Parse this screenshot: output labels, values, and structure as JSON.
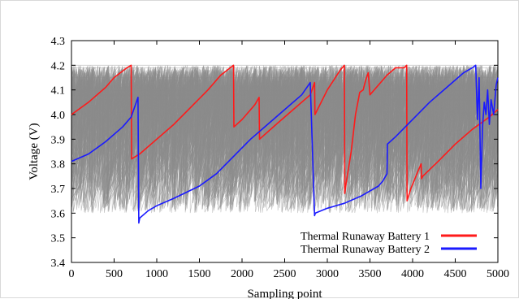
{
  "chart_data": {
    "type": "line",
    "title": "",
    "xlabel": "Sampling point",
    "ylabel": "Voltage (V)",
    "xlim": [
      0,
      5000
    ],
    "ylim": [
      3.4,
      4.3
    ],
    "x_ticks": [
      0,
      500,
      1000,
      1500,
      2000,
      2500,
      3000,
      3500,
      4000,
      4500,
      5000
    ],
    "y_ticks": [
      3.4,
      3.5,
      3.6,
      3.7,
      3.8,
      3.9,
      4.0,
      4.1,
      4.2,
      4.3
    ],
    "x_tick_labels": [
      "0",
      "500",
      "1000",
      "1500",
      "2000",
      "2500",
      "3000",
      "3500",
      "4000",
      "4500",
      "5000"
    ],
    "y_tick_labels": [
      "3.4",
      "3.5",
      "3.6",
      "3.7",
      "3.8",
      "3.9",
      "4.0",
      "4.1",
      "4.2",
      "4.3"
    ],
    "grid": false,
    "legend_position": "bottom-right",
    "background_series_color": "#8c8c8c",
    "series": [
      {
        "name": "Thermal Runaway Battery 1",
        "color": "#ff1a1a",
        "x": [
          0,
          200,
          400,
          500,
          650,
          700,
          705,
          800,
          1000,
          1200,
          1400,
          1600,
          1750,
          1900,
          1905,
          2000,
          2150,
          2200,
          2205,
          2400,
          2600,
          2800,
          2850,
          2855,
          3000,
          3150,
          3200,
          3205,
          3220,
          3280,
          3330,
          3380,
          3420,
          3450,
          3480,
          3500,
          3600,
          3700,
          3800,
          3900,
          3930,
          3935,
          3980,
          4050,
          4100,
          4105,
          4120,
          4300,
          4500,
          4700,
          4900,
          5000
        ],
        "y": [
          4.0,
          4.05,
          4.11,
          4.15,
          4.19,
          4.2,
          3.82,
          3.84,
          3.9,
          3.96,
          4.03,
          4.1,
          4.16,
          4.2,
          3.95,
          3.98,
          4.04,
          4.07,
          3.9,
          3.96,
          4.02,
          4.08,
          4.13,
          4.0,
          4.1,
          4.18,
          4.2,
          3.68,
          3.72,
          3.85,
          4.0,
          4.09,
          4.1,
          4.14,
          4.17,
          4.08,
          4.12,
          4.16,
          4.19,
          4.19,
          4.2,
          3.65,
          3.7,
          3.76,
          3.8,
          3.74,
          3.75,
          3.81,
          3.88,
          3.94,
          3.99,
          4.02
        ]
      },
      {
        "name": "Thermal Runaway Battery 2",
        "color": "#1a1aff",
        "x": [
          0,
          200,
          400,
          600,
          700,
          780,
          790,
          800,
          900,
          1000,
          1200,
          1500,
          1700,
          1900,
          2100,
          2300,
          2500,
          2700,
          2800,
          2850,
          2860,
          3000,
          3200,
          3400,
          3600,
          3650,
          3700,
          3705,
          3800,
          4000,
          4200,
          4400,
          4600,
          4700,
          4740,
          4760,
          4780,
          4800,
          4820,
          4840,
          4860,
          4880,
          4900,
          4920,
          4950,
          4980,
          5000
        ],
        "y": [
          3.81,
          3.84,
          3.89,
          3.95,
          3.99,
          4.07,
          3.56,
          3.58,
          3.61,
          3.63,
          3.66,
          3.71,
          3.76,
          3.83,
          3.9,
          3.96,
          4.02,
          4.08,
          4.13,
          3.59,
          3.6,
          3.62,
          3.64,
          3.67,
          3.71,
          3.73,
          3.76,
          3.88,
          3.91,
          3.98,
          4.05,
          4.11,
          4.17,
          4.19,
          4.2,
          3.98,
          4.15,
          3.7,
          3.95,
          4.05,
          4.0,
          4.1,
          3.96,
          4.06,
          4.0,
          4.12,
          4.15
        ]
      }
    ]
  }
}
